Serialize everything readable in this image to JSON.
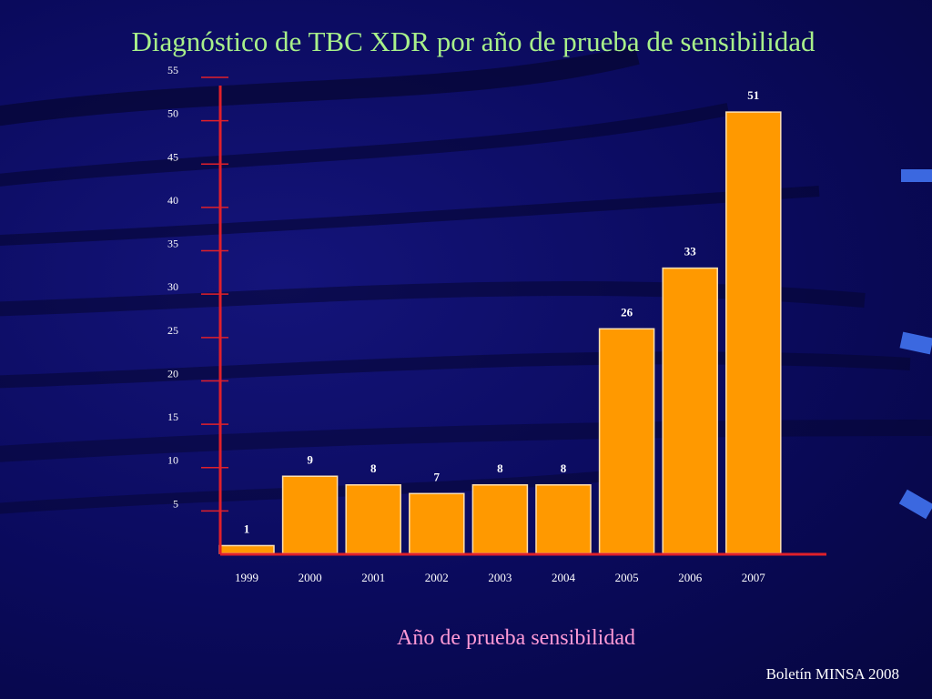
{
  "slide": {
    "source": "Boletín MINSA 2008"
  },
  "colors": {
    "bar": "#ff9900",
    "bar_edge": "#ffe0b0",
    "axis": "#e0202a",
    "title": "#a8f08a",
    "xlabel": "#ff9ad6"
  },
  "chart_data": {
    "type": "bar",
    "title": "Diagnóstico de TBC XDR por año de prueba de sensibilidad",
    "xlabel": "Año de prueba sensibilidad",
    "ylabel": "",
    "categories": [
      "1999",
      "2000",
      "2001",
      "2002",
      "2003",
      "2004",
      "2005",
      "2006",
      "2007"
    ],
    "values": [
      1,
      9,
      8,
      7,
      8,
      8,
      26,
      33,
      51
    ],
    "ylim": [
      0,
      55
    ],
    "yticks": [
      "5",
      "10",
      "15",
      "20",
      "25",
      "30",
      "35",
      "40",
      "45",
      "50",
      "55"
    ],
    "grid": false,
    "legend": "none"
  }
}
